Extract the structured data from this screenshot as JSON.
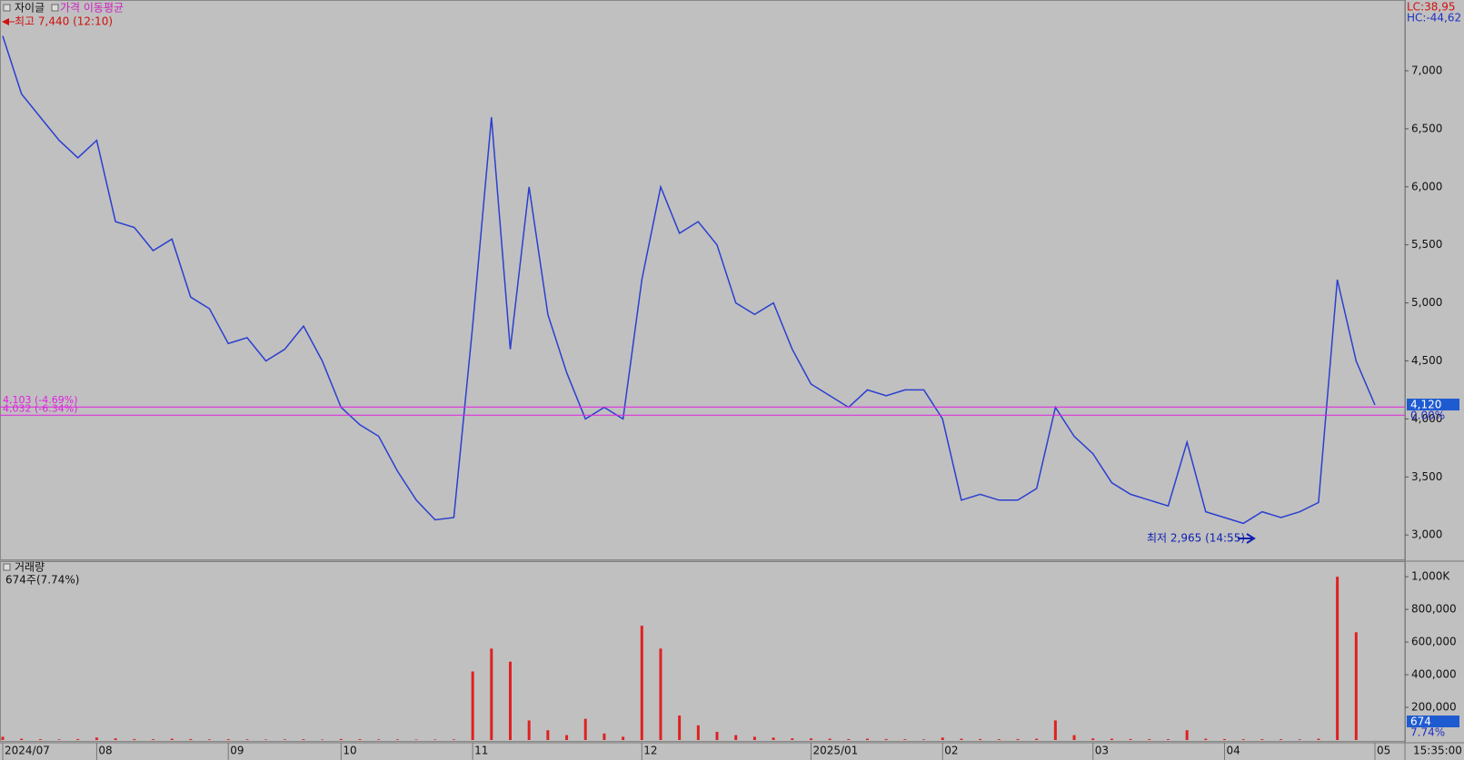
{
  "header": {
    "indicator": "가격 이동평균",
    "clock": "15:35:00"
  },
  "chart_data": [
    {
      "type": "line",
      "annotations": {
        "high": "최고 7,440 (12:10)",
        "low": "최저 2,965 (14:55)",
        "lc": "LC:38,95",
        "hc": "HC:-44,62"
      },
      "reference_lines": [
        {
          "value": 4103,
          "label": "4,103 (-4.69%)",
          "color": "#e020e0"
        },
        {
          "value": 4032,
          "label": "4,032 (-6.34%)",
          "color": "#e020e0"
        }
      ],
      "current": {
        "value": 4120,
        "label": "4,120",
        "change": "0.00%"
      },
      "categories": [
        "2024/07",
        null,
        null,
        null,
        null,
        "08",
        null,
        null,
        null,
        null,
        null,
        null,
        "09",
        null,
        null,
        null,
        null,
        null,
        "10",
        null,
        null,
        null,
        null,
        null,
        null,
        "11",
        null,
        null,
        null,
        null,
        null,
        null,
        null,
        null,
        "12",
        null,
        null,
        null,
        null,
        null,
        null,
        null,
        null,
        "2025/01",
        null,
        null,
        null,
        null,
        null,
        null,
        "02",
        null,
        null,
        null,
        null,
        null,
        null,
        null,
        "03",
        null,
        null,
        null,
        null,
        null,
        null,
        "04",
        null,
        null,
        null,
        null,
        null,
        null,
        null,
        "05"
      ],
      "series": [
        {
          "name": "자이글",
          "color": "#2a3fd0",
          "values": [
            7300,
            6800,
            6600,
            6400,
            6250,
            6400,
            5700,
            5650,
            5450,
            5550,
            5050,
            4950,
            4650,
            4700,
            4500,
            4600,
            4800,
            4500,
            4100,
            3950,
            3850,
            3550,
            3300,
            3130,
            3150,
            4800,
            6600,
            4600,
            6000,
            4900,
            4400,
            4000,
            4100,
            4000,
            5200,
            6000,
            5600,
            5700,
            5500,
            5000,
            4900,
            5000,
            4600,
            4300,
            4200,
            4100,
            4250,
            4200,
            4250,
            4250,
            4000,
            3300,
            3350,
            3300,
            3300,
            3400,
            4100,
            3850,
            3700,
            3450,
            3350,
            3300,
            3250,
            3800,
            3200,
            3150,
            3100,
            3200,
            3150,
            3200,
            3280,
            5200,
            4500,
            4120
          ]
        }
      ],
      "ylim": [
        2790,
        7610
      ],
      "yticks": [
        {
          "value": 3000,
          "label": "3,000"
        },
        {
          "value": 3500,
          "label": "3,500"
        },
        {
          "value": 4000,
          "label": "4,000"
        },
        {
          "value": 4500,
          "label": "4,500"
        },
        {
          "value": 5000,
          "label": "5,000"
        },
        {
          "value": 5500,
          "label": "5,500"
        },
        {
          "value": 6000,
          "label": "6,000"
        },
        {
          "value": 6500,
          "label": "6,500"
        },
        {
          "value": 7000,
          "label": "7,000"
        }
      ]
    },
    {
      "type": "bar",
      "title": "거래량",
      "subtitle": "674주(7.74%)",
      "current": {
        "value": 674,
        "label": "674",
        "change": "7.74%"
      },
      "categories": [
        "2024/07",
        null,
        null,
        null,
        null,
        "08",
        null,
        null,
        null,
        null,
        null,
        null,
        "09",
        null,
        null,
        null,
        null,
        null,
        "10",
        null,
        null,
        null,
        null,
        null,
        null,
        "11",
        null,
        null,
        null,
        null,
        null,
        null,
        null,
        null,
        "12",
        null,
        null,
        null,
        null,
        null,
        null,
        null,
        null,
        "2025/01",
        null,
        null,
        null,
        null,
        null,
        null,
        "02",
        null,
        null,
        null,
        null,
        null,
        null,
        null,
        "03",
        null,
        null,
        null,
        null,
        null,
        null,
        "04",
        null,
        null,
        null,
        null,
        null,
        null,
        null,
        "05"
      ],
      "color": "#e02020",
      "values": [
        20000,
        8000,
        5000,
        4000,
        6000,
        15000,
        10000,
        6000,
        5000,
        8000,
        6000,
        4000,
        5000,
        4000,
        3000,
        4000,
        5000,
        3000,
        6000,
        5000,
        4000,
        4000,
        3000,
        3000,
        4000,
        420000,
        560000,
        480000,
        120000,
        60000,
        30000,
        130000,
        40000,
        20000,
        700000,
        560000,
        150000,
        90000,
        50000,
        30000,
        20000,
        15000,
        10000,
        10000,
        8000,
        6000,
        8000,
        6000,
        5000,
        4000,
        15000,
        8000,
        6000,
        5000,
        6000,
        8000,
        120000,
        30000,
        10000,
        8000,
        6000,
        5000,
        5000,
        60000,
        8000,
        6000,
        5000,
        5000,
        5000,
        4000,
        8000,
        1000000,
        660000,
        674
      ],
      "ylim": [
        0,
        1090000
      ],
      "yticks": [
        {
          "value": 200000,
          "label": "200,000"
        },
        {
          "value": 400000,
          "label": "400,000"
        },
        {
          "value": 600000,
          "label": "600,000"
        },
        {
          "value": 800000,
          "label": "800,000"
        },
        {
          "value": 1000000,
          "label": "1,000K"
        }
      ]
    }
  ]
}
